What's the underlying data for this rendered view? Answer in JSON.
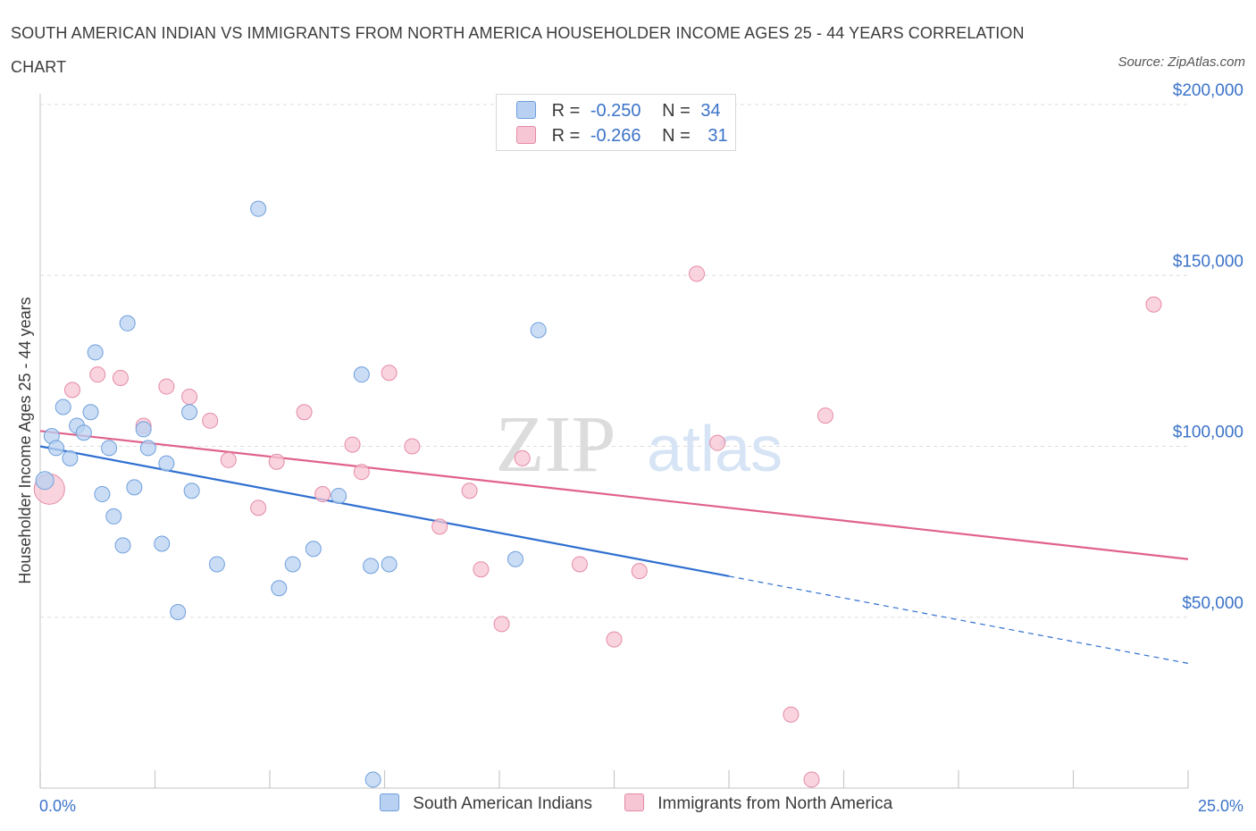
{
  "header": {
    "title": "SOUTH AMERICAN INDIAN VS IMMIGRANTS FROM NORTH AMERICA HOUSEHOLDER INCOME AGES 25 - 44 YEARS CORRELATION CHART",
    "source": "Source: ZipAtlas.com"
  },
  "watermark": {
    "zip": "ZIP",
    "atlas": "atlas"
  },
  "legend": {
    "rows": [
      {
        "r_label": "R =",
        "r_value": "-0.250",
        "n_label": "N =",
        "n_value": "34"
      },
      {
        "r_label": "R =",
        "r_value": "-0.266",
        "n_label": "N =",
        "n_value": "31"
      }
    ]
  },
  "colors": {
    "blue_fill": "#b8d1f2",
    "blue_stroke": "#6f9fdc",
    "blue_line": "#2f6fd0",
    "pink_fill": "#f7c6d4",
    "pink_stroke": "#e58aa6",
    "pink_line": "#e0628a",
    "axis_label": "#3b73c9",
    "grid": "#dedede"
  },
  "chart_data": {
    "type": "scatter",
    "xlabel": "",
    "ylabel": "Householder Income Ages 25 - 44 years",
    "xlim": [
      0,
      25
    ],
    "ylim": [
      0,
      200000
    ],
    "x_tick_labels": [
      "0.0%",
      "25.0%"
    ],
    "y_ticks": [
      50000,
      100000,
      150000,
      200000
    ],
    "y_tick_labels": [
      "$50,000",
      "$100,000",
      "$150,000",
      "$200,000"
    ],
    "grid": "horizontal dashed",
    "series": [
      {
        "name": "South American Indians",
        "points": [
          [
            0.1,
            90000
          ],
          [
            0.25,
            103000
          ],
          [
            0.35,
            99500
          ],
          [
            0.5,
            111500
          ],
          [
            0.65,
            96500
          ],
          [
            0.8,
            106000
          ],
          [
            0.95,
            104000
          ],
          [
            1.1,
            110000
          ],
          [
            1.2,
            127500
          ],
          [
            1.35,
            86000
          ],
          [
            1.5,
            99500
          ],
          [
            1.6,
            79500
          ],
          [
            1.8,
            71000
          ],
          [
            1.9,
            136000
          ],
          [
            2.05,
            88000
          ],
          [
            2.25,
            105000
          ],
          [
            2.35,
            99500
          ],
          [
            2.65,
            71500
          ],
          [
            2.75,
            95000
          ],
          [
            3.0,
            51500
          ],
          [
            3.25,
            110000
          ],
          [
            3.3,
            87000
          ],
          [
            3.85,
            65500
          ],
          [
            4.75,
            169500
          ],
          [
            5.2,
            58500
          ],
          [
            5.5,
            65500
          ],
          [
            5.95,
            70000
          ],
          [
            6.5,
            85500
          ],
          [
            7.0,
            121000
          ],
          [
            7.2,
            65000
          ],
          [
            7.25,
            2500
          ],
          [
            7.6,
            65500
          ],
          [
            10.35,
            67000
          ],
          [
            10.85,
            134000
          ]
        ],
        "trend": {
          "x": [
            0,
            15.0
          ],
          "y": [
            100000,
            62000
          ],
          "dashed_to": [
            25,
            36500
          ]
        }
      },
      {
        "name": "Immigrants from North America",
        "points": [
          [
            0.2,
            87500
          ],
          [
            0.7,
            116500
          ],
          [
            1.25,
            121000
          ],
          [
            1.75,
            120000
          ],
          [
            2.25,
            106000
          ],
          [
            2.75,
            117500
          ],
          [
            3.25,
            114500
          ],
          [
            3.7,
            107500
          ],
          [
            4.1,
            96000
          ],
          [
            4.75,
            82000
          ],
          [
            5.15,
            95500
          ],
          [
            5.75,
            110000
          ],
          [
            6.15,
            86000
          ],
          [
            6.8,
            100500
          ],
          [
            7.0,
            92500
          ],
          [
            7.6,
            121500
          ],
          [
            8.1,
            100000
          ],
          [
            8.7,
            76500
          ],
          [
            9.35,
            87000
          ],
          [
            9.6,
            64000
          ],
          [
            10.05,
            48000
          ],
          [
            10.5,
            96500
          ],
          [
            11.75,
            65500
          ],
          [
            12.5,
            43500
          ],
          [
            13.05,
            63500
          ],
          [
            14.3,
            150500
          ],
          [
            14.75,
            101000
          ],
          [
            16.35,
            21500
          ],
          [
            16.8,
            2500
          ],
          [
            17.1,
            109000
          ],
          [
            24.25,
            141500
          ]
        ],
        "trend": {
          "x": [
            0,
            25
          ],
          "y": [
            104500,
            67000
          ]
        }
      }
    ]
  },
  "bottom_legend": [
    "South American Indians",
    "Immigrants from North America"
  ]
}
